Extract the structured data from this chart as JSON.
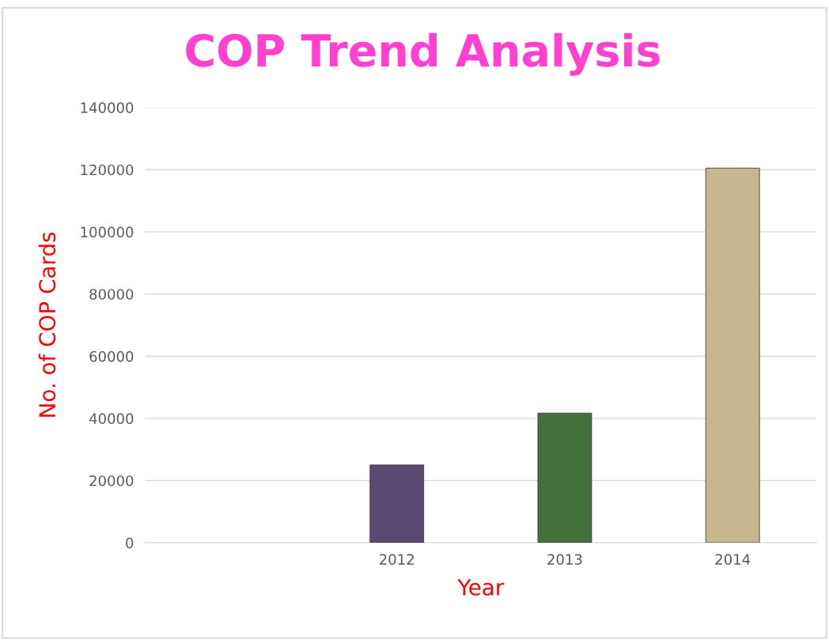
{
  "chart_data": {
    "type": "bar",
    "title": "COP Trend Analysis",
    "xlabel": "Year",
    "ylabel": "No. of COP Cards",
    "categories": [
      null,
      "2012",
      "2013",
      "2014"
    ],
    "values": [
      null,
      25000,
      41700,
      120500
    ],
    "colors": [
      "#5a4a72",
      "#5a4a72",
      "#44703c",
      "#c8b78e"
    ],
    "ylim": [
      0,
      140000
    ],
    "yticks": [
      0,
      20000,
      40000,
      60000,
      80000,
      100000,
      120000,
      140000
    ],
    "grid": "y"
  }
}
